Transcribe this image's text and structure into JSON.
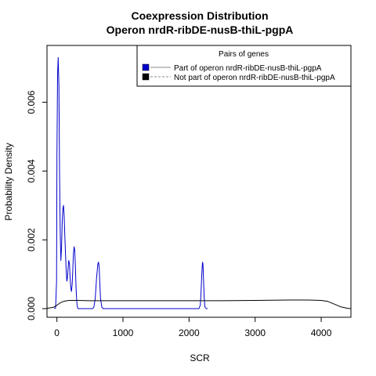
{
  "chart_data": {
    "type": "line",
    "title": "Coexpression Distribution",
    "subtitle": "Operon nrdR-ribDE-nusB-thiL-pgpA",
    "xlabel": "SCR",
    "ylabel": "Probability Density",
    "xlim": [
      -150,
      4450
    ],
    "ylim": [
      -0.00025,
      0.00765
    ],
    "x_ticks": [
      0,
      1000,
      2000,
      3000,
      4000
    ],
    "x_tick_labels": [
      "0",
      "1000",
      "2000",
      "3000",
      "4000"
    ],
    "y_ticks": [
      0.0,
      0.002,
      0.004,
      0.006
    ],
    "y_tick_labels": [
      "0.000",
      "0.002",
      "0.004",
      "0.006"
    ],
    "grid": false,
    "legend": {
      "title": "Pairs of genes",
      "placement": "top-right",
      "entries": [
        "Part of operon nrdR-ribDE-nusB-thiL-pgpA",
        "Not part of operon nrdR-ribDE-nusB-thiL-pgpA"
      ]
    },
    "series": [
      {
        "color": "#0000cc",
        "x": [
          -40,
          -20,
          -5,
          0,
          10,
          20,
          30,
          40,
          50,
          60,
          70,
          80,
          90,
          100,
          110,
          120,
          130,
          140,
          150,
          160,
          170,
          180,
          190,
          200,
          210,
          220,
          230,
          240,
          250,
          260,
          270,
          280,
          290,
          300,
          310,
          320,
          330,
          340,
          350,
          360,
          380,
          400,
          450,
          500,
          540,
          560,
          580,
          600,
          620,
          630,
          640,
          650,
          660,
          680,
          700,
          720,
          760,
          800,
          1000,
          1500,
          2000,
          2150,
          2170,
          2180,
          2190,
          2200,
          2205,
          2210,
          2220,
          2230,
          2240,
          2260,
          2280
        ],
        "y": [
          0.0,
          2e-05,
          0.0008,
          0.0045,
          0.0068,
          0.0073,
          0.0065,
          0.004,
          0.0022,
          0.0014,
          0.0018,
          0.0025,
          0.0029,
          0.003,
          0.0027,
          0.0021,
          0.0016,
          0.0011,
          0.0008,
          0.0009,
          0.0012,
          0.0014,
          0.0013,
          0.0009,
          0.0006,
          0.0005,
          0.0007,
          0.0011,
          0.0016,
          0.0018,
          0.0017,
          0.0012,
          0.0006,
          0.0002,
          5e-05,
          0.0,
          0.0,
          0.0,
          0.0,
          0.0,
          0.0,
          0.0,
          0.0,
          0.0,
          0.0,
          5e-05,
          0.0003,
          0.0009,
          0.0013,
          0.00135,
          0.0012,
          0.0007,
          0.0003,
          4e-05,
          0.0,
          0.0,
          0.0,
          0.0,
          0.0,
          0.0,
          0.0,
          0.0,
          0.0001,
          0.0004,
          0.0009,
          0.00125,
          0.00135,
          0.0013,
          0.0008,
          0.0003,
          5e-05,
          0.0,
          0.0
        ]
      },
      {
        "color": "#000000",
        "x": [
          -150,
          -50,
          0,
          50,
          100,
          150,
          200,
          300,
          500,
          1000,
          1500,
          2000,
          2500,
          3000,
          3500,
          3800,
          4000,
          4100,
          4200,
          4300,
          4400,
          4450
        ],
        "y": [
          1e-05,
          4e-05,
          0.0001,
          0.00017,
          0.00021,
          0.00023,
          0.00024,
          0.00024,
          0.00023,
          0.00023,
          0.00023,
          0.00023,
          0.00023,
          0.00024,
          0.00025,
          0.00025,
          0.00024,
          0.00021,
          0.00013,
          5e-05,
          1e-05,
          0.0
        ]
      }
    ]
  }
}
